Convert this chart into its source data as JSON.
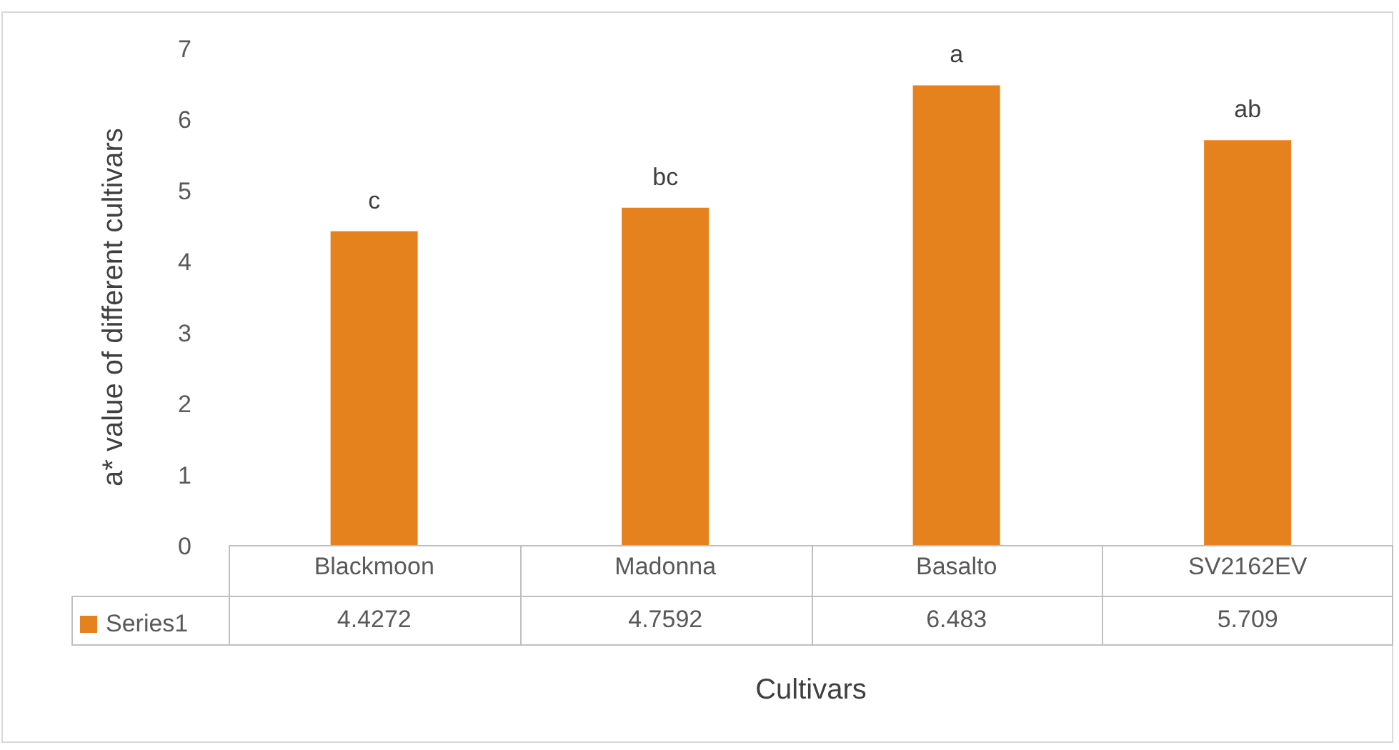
{
  "chart_data": {
    "type": "bar",
    "xlabel": "Cultivars",
    "ylabel": "a* value of different cultivars",
    "categories": [
      "Blackmoon",
      "Madonna",
      "Basalto",
      "SV2162EV"
    ],
    "series": [
      {
        "name": "Series1",
        "color": "#e6821e",
        "values": [
          4.4272,
          4.7592,
          6.483,
          5.709
        ]
      }
    ],
    "ylim": [
      0,
      7
    ],
    "yticks": [
      0,
      1,
      2,
      3,
      4,
      5,
      6,
      7
    ],
    "grid": false,
    "data_labels": true,
    "legend": "bottom",
    "annotations": [
      {
        "text": "c",
        "x": "Blackmoon",
        "y": 4.4272
      },
      {
        "text": "bc",
        "x": "Madonna",
        "y": 4.7592
      },
      {
        "text": "a",
        "x": "Basalto",
        "y": 6.483
      },
      {
        "text": "ab",
        "x": "SV2162EV",
        "y": 5.709
      }
    ]
  }
}
